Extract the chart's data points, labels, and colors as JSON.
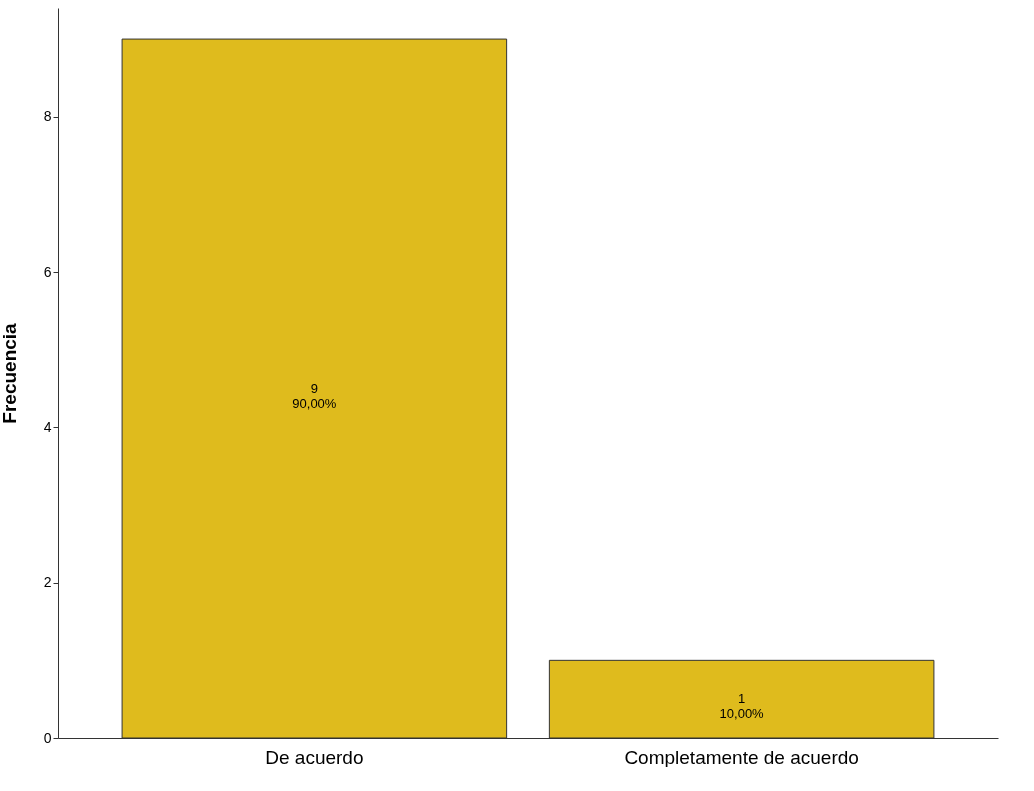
{
  "chart_data": {
    "type": "bar",
    "ylabel": "Frecuencia",
    "categories": [
      "De acuerdo",
      "Completamente de acuerdo"
    ],
    "values": [
      9,
      1
    ],
    "color": "#dfbb1d",
    "value_labels": [
      "9\n90,00%",
      "1\n10,00%"
    ],
    "ylim": [
      0,
      9.4
    ],
    "yticks": [
      0,
      2,
      4,
      6,
      8
    ],
    "grid": false
  }
}
